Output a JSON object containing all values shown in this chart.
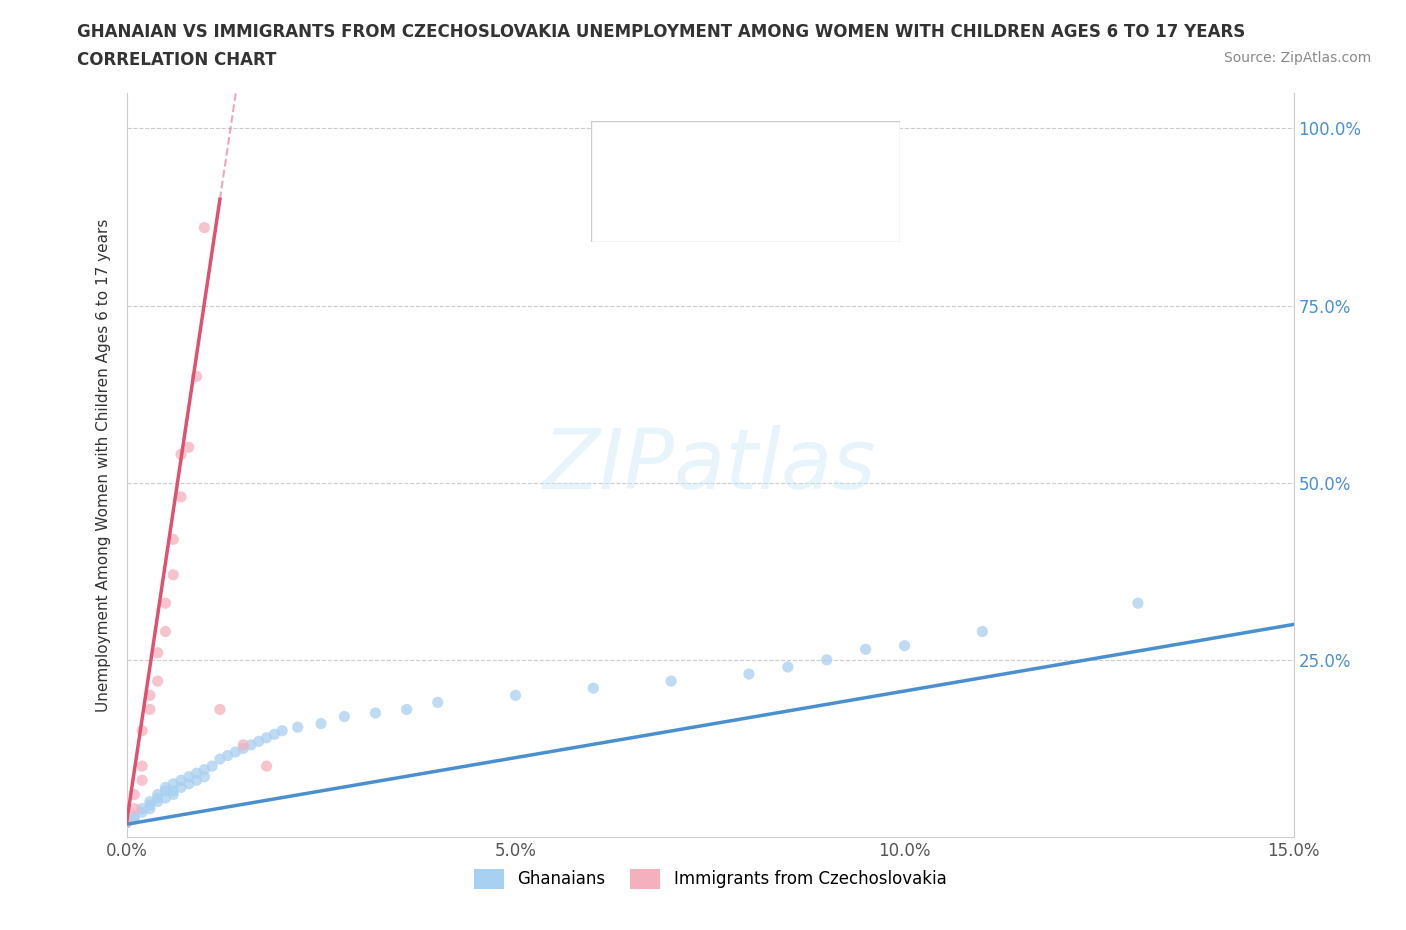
{
  "title_line1": "GHANAIAN VS IMMIGRANTS FROM CZECHOSLOVAKIA UNEMPLOYMENT AMONG WOMEN WITH CHILDREN AGES 6 TO 17 YEARS",
  "title_line2": "CORRELATION CHART",
  "source": "Source: ZipAtlas.com",
  "ylabel": "Unemployment Among Women with Children Ages 6 to 17 years",
  "xlim": [
    0.0,
    0.15
  ],
  "ylim": [
    0.0,
    1.05
  ],
  "xtick_labels": [
    "0.0%",
    "5.0%",
    "10.0%",
    "15.0%"
  ],
  "ytick_labels_right": [
    "25.0%",
    "50.0%",
    "75.0%",
    "100.0%"
  ],
  "ghanaian_color": "#a8d0f0",
  "czech_color": "#f5b0be",
  "trend_ghanaian_color": "#4a90d0",
  "trend_czech_color": "#e05070",
  "watermark": "ZIPatlas",
  "ghanaian_label": "Ghanaians",
  "czech_label": "Immigrants from Czechoslovakia",
  "ghanaian_x": [
    0.0,
    0.001,
    0.001,
    0.002,
    0.002,
    0.003,
    0.003,
    0.003,
    0.004,
    0.004,
    0.004,
    0.005,
    0.005,
    0.005,
    0.006,
    0.006,
    0.006,
    0.007,
    0.007,
    0.008,
    0.008,
    0.009,
    0.009,
    0.01,
    0.01,
    0.011,
    0.012,
    0.013,
    0.014,
    0.015,
    0.016,
    0.017,
    0.018,
    0.019,
    0.02,
    0.022,
    0.025,
    0.028,
    0.032,
    0.036,
    0.04,
    0.05,
    0.06,
    0.07,
    0.08,
    0.085,
    0.09,
    0.095,
    0.1,
    0.11,
    0.13
  ],
  "ghanaian_y": [
    0.02,
    0.03,
    0.025,
    0.04,
    0.035,
    0.05,
    0.045,
    0.04,
    0.055,
    0.05,
    0.06,
    0.065,
    0.055,
    0.07,
    0.06,
    0.075,
    0.065,
    0.08,
    0.07,
    0.085,
    0.075,
    0.09,
    0.08,
    0.095,
    0.085,
    0.1,
    0.11,
    0.115,
    0.12,
    0.125,
    0.13,
    0.135,
    0.14,
    0.145,
    0.15,
    0.155,
    0.16,
    0.17,
    0.175,
    0.18,
    0.19,
    0.2,
    0.21,
    0.22,
    0.23,
    0.24,
    0.25,
    0.265,
    0.27,
    0.29,
    0.33
  ],
  "czech_x": [
    0.0,
    0.001,
    0.001,
    0.002,
    0.002,
    0.002,
    0.003,
    0.003,
    0.004,
    0.004,
    0.005,
    0.005,
    0.006,
    0.006,
    0.007,
    0.007,
    0.008,
    0.009,
    0.01,
    0.012,
    0.015,
    0.018
  ],
  "czech_y": [
    0.02,
    0.04,
    0.06,
    0.08,
    0.1,
    0.15,
    0.18,
    0.2,
    0.22,
    0.26,
    0.29,
    0.33,
    0.37,
    0.42,
    0.48,
    0.54,
    0.55,
    0.65,
    0.86,
    0.18,
    0.13,
    0.1
  ]
}
